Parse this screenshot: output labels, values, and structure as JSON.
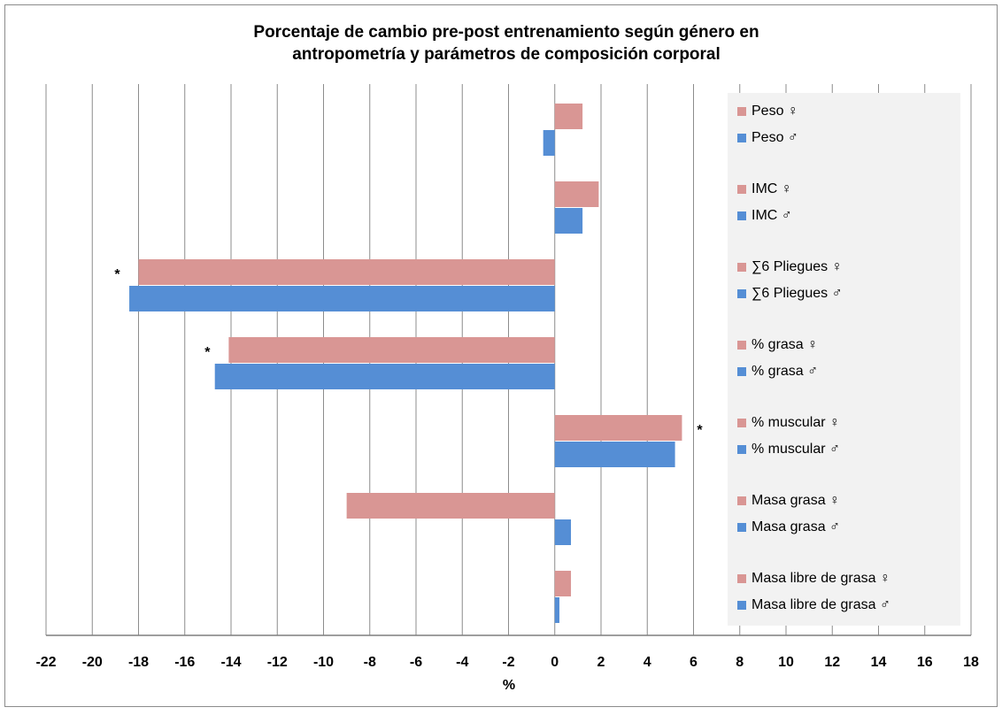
{
  "chart_data": {
    "type": "bar",
    "orientation": "horizontal",
    "title": [
      "Porcentaje de cambio pre-post entrenamiento  según género en",
      "antropometría  y parámetros  de composición  corporal"
    ],
    "x_label": "%",
    "xlim": [
      -22,
      18
    ],
    "xticks": [
      -22,
      -20,
      -18,
      -16,
      -14,
      -12,
      -10,
      -8,
      -6,
      -4,
      -2,
      0,
      2,
      4,
      6,
      8,
      10,
      12,
      14,
      16,
      18
    ],
    "grid": true,
    "legend": "right",
    "series": [
      {
        "name": "Peso ♀",
        "color": "#d99694",
        "values": [
          1.2
        ]
      },
      {
        "name": "Peso ♂",
        "color": "#558ed5",
        "values": [
          -0.5
        ]
      },
      {
        "name": "IMC ♀",
        "color": "#d99694",
        "values": [
          1.9
        ]
      },
      {
        "name": "IMC ♂",
        "color": "#558ed5",
        "values": [
          1.2
        ]
      },
      {
        "name": "∑6 Pliegues ♀",
        "color": "#d99694",
        "values": [
          -18.0
        ],
        "annotation": "*"
      },
      {
        "name": "∑6 Pliegues ♂",
        "color": "#558ed5",
        "values": [
          -18.4
        ]
      },
      {
        "name": "% grasa ♀",
        "color": "#d99694",
        "values": [
          -14.1
        ],
        "annotation": "*"
      },
      {
        "name": "% grasa ♂",
        "color": "#558ed5",
        "values": [
          -14.7
        ]
      },
      {
        "name": "% muscular ♀",
        "color": "#d99694",
        "values": [
          5.5
        ],
        "annotation": "*"
      },
      {
        "name": "% muscular ♂",
        "color": "#558ed5",
        "values": [
          5.2
        ]
      },
      {
        "name": "Masa grasa ♀",
        "color": "#d99694",
        "values": [
          -9.0
        ]
      },
      {
        "name": "Masa grasa ♂",
        "color": "#558ed5",
        "values": [
          0.7
        ]
      },
      {
        "name": "Masa libre de grasa ♀",
        "color": "#d99694",
        "values": [
          0.7
        ]
      },
      {
        "name": "Masa libre de grasa ♂",
        "color": "#558ed5",
        "values": [
          0.2
        ]
      }
    ]
  }
}
